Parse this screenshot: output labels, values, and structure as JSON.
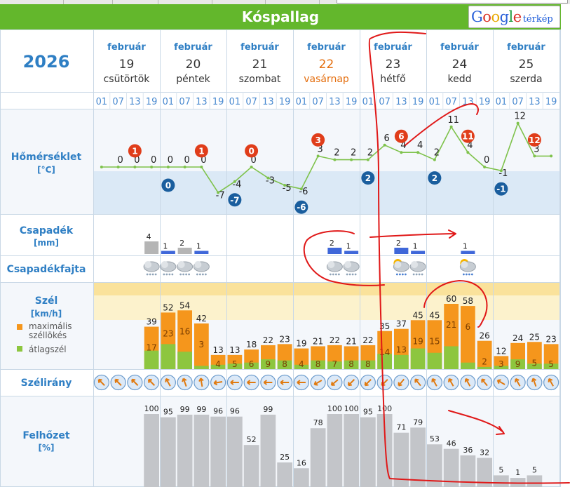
{
  "window": {
    "title": "Kóspallag",
    "map_button": {
      "google": "Google",
      "label": "térkép"
    }
  },
  "year": "2026",
  "days": [
    {
      "month": "február",
      "day": "19",
      "weekday": "csütörtök",
      "highlight": false
    },
    {
      "month": "február",
      "day": "20",
      "weekday": "péntek",
      "highlight": false
    },
    {
      "month": "február",
      "day": "21",
      "weekday": "szombat",
      "highlight": false
    },
    {
      "month": "február",
      "day": "22",
      "weekday": "vasárnap",
      "highlight": true
    },
    {
      "month": "február",
      "day": "23",
      "weekday": "hétfő",
      "highlight": false
    },
    {
      "month": "február",
      "day": "24",
      "weekday": "kedd",
      "highlight": false
    },
    {
      "month": "február",
      "day": "25",
      "weekday": "szerda",
      "highlight": false
    }
  ],
  "hours": [
    "01",
    "07",
    "13",
    "19"
  ],
  "rows": {
    "temperature": {
      "label": "Hőmérséklet",
      "unit": "[°C]"
    },
    "precip": {
      "label": "Csapadék",
      "unit": "[mm]"
    },
    "precip_type": {
      "label": "Csapadékfajta"
    },
    "wind": {
      "label": "Szél",
      "unit": "[km/h]",
      "legend_gust": "maximális széllökés",
      "legend_avg": "átlagszél"
    },
    "wind_dir": {
      "label": "Szélirány"
    },
    "cloud": {
      "label": "Felhőzet",
      "unit": "[%]"
    }
  },
  "colors": {
    "header_green": "#63b72c",
    "label_blue": "#2f7fc4",
    "sunday_orange": "#e46e0e",
    "max_badge": "#e03d1a",
    "min_badge": "#1a5e9e",
    "temp_line": "#7ec24b",
    "cold_band": "#dbe9f6",
    "precip_bar": "#3f67d9",
    "snow_bar": "#b5b5b5",
    "gust_bar": "#f5961c",
    "avg_bar": "#8dc63f",
    "cloud_bar": "#c3c5c9",
    "pen_red": "#e01818"
  },
  "chart_data": {
    "type": "table",
    "x": [
      "19 01",
      "19 07",
      "19 13",
      "19 19",
      "20 01",
      "20 07",
      "20 13",
      "20 19",
      "21 01",
      "21 07",
      "21 13",
      "21 19",
      "22 01",
      "22 07",
      "22 13",
      "22 19",
      "23 01",
      "23 07",
      "23 13",
      "23 19",
      "24 01",
      "24 07",
      "24 13",
      "24 19",
      "25 01",
      "25 07",
      "25 13",
      "25 19"
    ],
    "temperature": {
      "values": [
        0,
        0,
        0,
        0,
        0,
        0,
        0,
        -7,
        -4,
        0,
        -3,
        -5,
        -6,
        3,
        2,
        2,
        2,
        6,
        4,
        4,
        2,
        11,
        4,
        0,
        -1,
        12,
        3,
        3
      ],
      "labels": [
        "",
        "0",
        "0",
        "0",
        "0",
        "0",
        "0",
        "-7",
        "-4",
        "0",
        "-3",
        "-5",
        "-6",
        "3",
        "2",
        "2",
        "2",
        "6",
        "4",
        "4",
        "2",
        "11",
        "4",
        "0",
        "-1",
        "12",
        "3",
        ""
      ],
      "max_badges": [
        {
          "slot": 2,
          "value": "1"
        },
        {
          "slot": 6,
          "value": "1"
        },
        {
          "slot": 9,
          "value": "0"
        },
        {
          "slot": 13,
          "value": "3"
        },
        {
          "slot": 18,
          "value": "6"
        },
        {
          "slot": 22,
          "value": "11"
        },
        {
          "slot": 26,
          "value": "12"
        }
      ],
      "min_badges": [
        {
          "slot": 4,
          "value": "0"
        },
        {
          "slot": 8,
          "value": "-7"
        },
        {
          "slot": 12,
          "value": "-6"
        },
        {
          "slot": 16,
          "value": "2"
        },
        {
          "slot": 20,
          "value": "2"
        },
        {
          "slot": 24,
          "value": "-1"
        }
      ]
    },
    "precip": {
      "bars": [
        {
          "slot": 3,
          "value": "4",
          "amount": 4,
          "kind": "snow"
        },
        {
          "slot": 4,
          "value": "1",
          "amount": 1,
          "kind": "rain"
        },
        {
          "slot": 5,
          "value": "2",
          "amount": 2,
          "kind": "snow"
        },
        {
          "slot": 6,
          "value": "1",
          "amount": 1,
          "kind": "rain"
        },
        {
          "slot": 14,
          "value": "2",
          "amount": 2,
          "kind": "rain"
        },
        {
          "slot": 15,
          "value": "1",
          "amount": 1,
          "kind": "rain"
        },
        {
          "slot": 18,
          "value": "2",
          "amount": 2,
          "kind": "rain"
        },
        {
          "slot": 19,
          "value": "1",
          "amount": 1,
          "kind": "rain"
        },
        {
          "slot": 22,
          "value": "1",
          "amount": 1,
          "kind": "rain"
        }
      ]
    },
    "precip_type": {
      "icons": [
        {
          "slot": 3,
          "kind": "snow-cloud-icon"
        },
        {
          "slot": 4,
          "kind": "snow-cloud-icon"
        },
        {
          "slot": 5,
          "kind": "snow-cloud-icon"
        },
        {
          "slot": 6,
          "kind": "snow-cloud-icon"
        },
        {
          "slot": 14,
          "kind": "snow-cloud-icon"
        },
        {
          "slot": 15,
          "kind": "snow-cloud-icon"
        },
        {
          "slot": 18,
          "kind": "sun-rain-cloud-icon"
        },
        {
          "slot": 19,
          "kind": "snow-cloud-icon"
        },
        {
          "slot": 22,
          "kind": "sun-rain-cloud-icon"
        }
      ]
    },
    "wind": {
      "gust": [
        null,
        null,
        null,
        39,
        52,
        54,
        42,
        13,
        13,
        18,
        22,
        23,
        19,
        21,
        22,
        21,
        22,
        35,
        37,
        45,
        45,
        60,
        58,
        26,
        12,
        24,
        25,
        23
      ],
      "avg": [
        null,
        null,
        null,
        17,
        23,
        16,
        3,
        4,
        5,
        6,
        9,
        8,
        4,
        8,
        7,
        8,
        8,
        14,
        13,
        19,
        15,
        21,
        6,
        2,
        3,
        9,
        5,
        5
      ],
      "ylim": [
        0,
        80
      ]
    },
    "wind_dir": {
      "angles": [
        135,
        135,
        135,
        135,
        150,
        160,
        170,
        80,
        90,
        90,
        90,
        90,
        90,
        60,
        50,
        45,
        45,
        45,
        40,
        140,
        150,
        150,
        150,
        140,
        120,
        150,
        160,
        150
      ]
    },
    "cloud": {
      "values": [
        null,
        null,
        null,
        100,
        95,
        99,
        99,
        96,
        96,
        52,
        99,
        25,
        16,
        78,
        100,
        100,
        95,
        100,
        71,
        79,
        53,
        46,
        36,
        32,
        5,
        1,
        5,
        null
      ],
      "ylim": [
        0,
        100
      ]
    }
  }
}
